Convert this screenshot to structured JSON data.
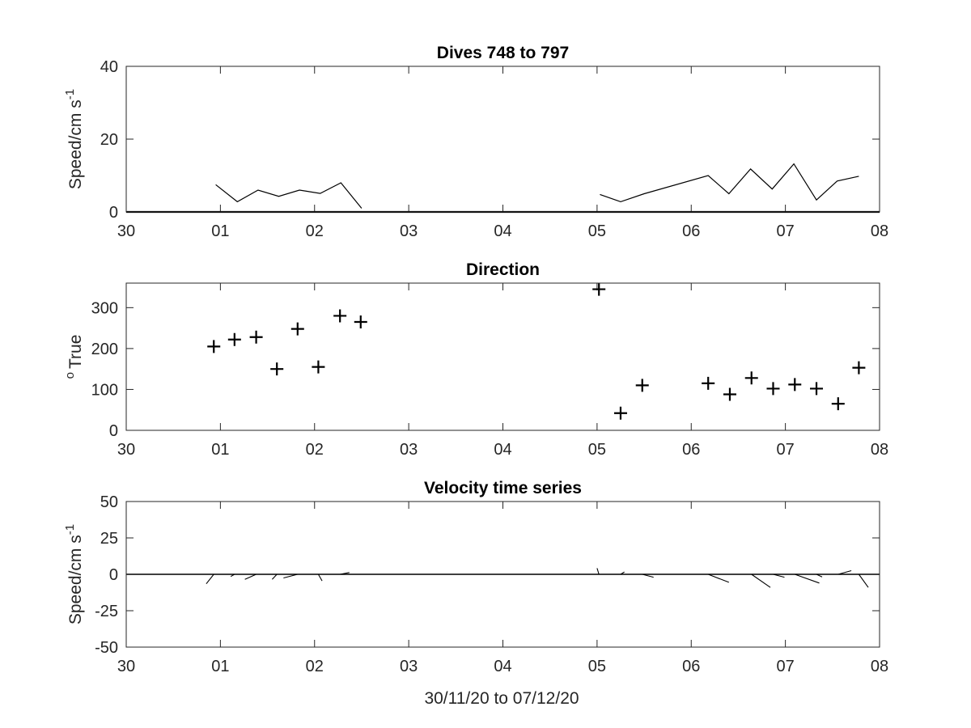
{
  "figure": {
    "xlabel": "30/11/20 to 07/12/20",
    "xtick_labels": [
      "30",
      "01",
      "02",
      "03",
      "04",
      "05",
      "06",
      "07",
      "08"
    ]
  },
  "chart_data": [
    {
      "type": "line",
      "title": "Dives 748 to 797",
      "ylabel_main": "Speed/cm s",
      "ylabel_sup": "-1",
      "xlim": [
        0,
        8
      ],
      "ylim": [
        0,
        40
      ],
      "yticks": [
        0,
        20,
        40
      ],
      "grid": false,
      "series": [
        {
          "segments": [
            [
              [
                0.95,
                7.5
              ],
              [
                1.18,
                2.8
              ],
              [
                1.4,
                6.0
              ],
              [
                1.62,
                4.3
              ],
              [
                1.84,
                6.0
              ],
              [
                2.06,
                5.1
              ],
              [
                2.28,
                8.0
              ],
              [
                2.5,
                1.0
              ]
            ],
            [
              [
                5.03,
                4.8
              ],
              [
                5.25,
                2.8
              ],
              [
                5.5,
                5.0
              ],
              [
                6.18,
                10.0
              ],
              [
                6.4,
                5.0
              ],
              [
                6.63,
                11.8
              ],
              [
                6.86,
                6.3
              ],
              [
                7.09,
                13.2
              ],
              [
                7.33,
                3.3
              ],
              [
                7.55,
                8.5
              ],
              [
                7.78,
                9.8
              ]
            ]
          ]
        }
      ]
    },
    {
      "type": "scatter",
      "title": "Direction",
      "ylabel_sup": "o",
      "ylabel_main": "True",
      "xlim": [
        0,
        8
      ],
      "ylim": [
        0,
        360
      ],
      "yticks": [
        0,
        100,
        200,
        300
      ],
      "marker": "+",
      "grid": false,
      "x": [
        0.93,
        1.15,
        1.38,
        1.6,
        1.82,
        2.04,
        2.27,
        2.49,
        5.02,
        5.25,
        5.48,
        6.18,
        6.41,
        6.64,
        6.87,
        7.1,
        7.33,
        7.56,
        7.78
      ],
      "y": [
        205,
        222,
        228,
        150,
        248,
        155,
        280,
        265,
        345,
        42,
        110,
        115,
        88,
        128,
        102,
        112,
        102,
        65,
        153
      ]
    },
    {
      "type": "line",
      "title": "Velocity time series",
      "ylabel_main": "Speed/cm s",
      "ylabel_sup": "-1",
      "xlim": [
        0,
        8
      ],
      "ylim": [
        -50,
        50
      ],
      "yticks": [
        -50,
        -25,
        0,
        25,
        50
      ],
      "grid": false,
      "vectors": [
        {
          "x": 0.93,
          "u": -0.08,
          "v": -6.5
        },
        {
          "x": 1.15,
          "u": -0.04,
          "v": -1.5
        },
        {
          "x": 1.38,
          "u": -0.12,
          "v": -3.5
        },
        {
          "x": 1.6,
          "u": -0.05,
          "v": -3.5
        },
        {
          "x": 1.82,
          "u": -0.15,
          "v": -2.5
        },
        {
          "x": 2.04,
          "u": 0.04,
          "v": -4.5
        },
        {
          "x": 2.27,
          "u": 0.1,
          "v": 1.2
        },
        {
          "x": 5.02,
          "u": -0.02,
          "v": 4.2
        },
        {
          "x": 5.25,
          "u": 0.04,
          "v": 1.6
        },
        {
          "x": 5.48,
          "u": 0.12,
          "v": -2.0
        },
        {
          "x": 6.18,
          "u": 0.22,
          "v": -5.5
        },
        {
          "x": 6.41,
          "u": 0.0,
          "v": 0.0
        },
        {
          "x": 6.64,
          "u": 0.2,
          "v": -9.0
        },
        {
          "x": 6.87,
          "u": 0.12,
          "v": -2.0
        },
        {
          "x": 7.1,
          "u": 0.26,
          "v": -6.0
        },
        {
          "x": 7.33,
          "u": 0.06,
          "v": -1.8
        },
        {
          "x": 7.56,
          "u": 0.14,
          "v": 2.5
        },
        {
          "x": 7.78,
          "u": 0.1,
          "v": -9.0
        }
      ]
    }
  ]
}
